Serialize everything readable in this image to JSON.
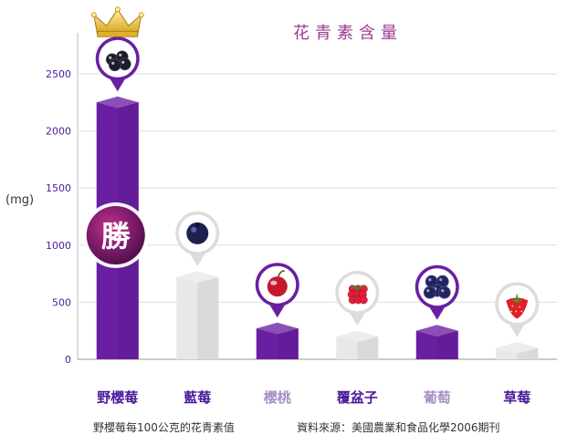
{
  "chart_data": {
    "type": "bar",
    "title": "花青素含量",
    "ylabel": "(mg)",
    "xlabel": "",
    "ylim": [
      0,
      2700
    ],
    "yticks": [
      0,
      500,
      1000,
      1500,
      2000,
      2500
    ],
    "grid": true,
    "categories": [
      "野櫻莓",
      "藍莓",
      "櫻桃",
      "覆盆子",
      "葡萄",
      "草莓"
    ],
    "values": [
      2250,
      720,
      270,
      200,
      250,
      100
    ],
    "bar_colors": [
      "#6a1fa3",
      "#e8e8e8",
      "#6a1fa3",
      "#e8e8e8",
      "#6a1fa3",
      "#e8e8e8"
    ],
    "label_colors": [
      "#4a1a9a",
      "#4a1a9a",
      "#a58fc4",
      "#4a1a9a",
      "#a58fc4",
      "#4a1a9a"
    ],
    "icons": [
      "aronia-berry-icon",
      "blueberry-icon",
      "cherry-icon",
      "raspberry-icon",
      "grape-icon",
      "strawberry-icon"
    ],
    "badge": "勝",
    "crown_icon": "crown-icon"
  },
  "footnote": "野櫻莓每100公克的花青素值",
  "source": "資料來源：美國農業和食品化學2006期刊",
  "colors": {
    "accent": "#6a1fa3",
    "title": "#a03a8c",
    "axis_text": "#4a1a9a",
    "grid": "#dedede"
  }
}
